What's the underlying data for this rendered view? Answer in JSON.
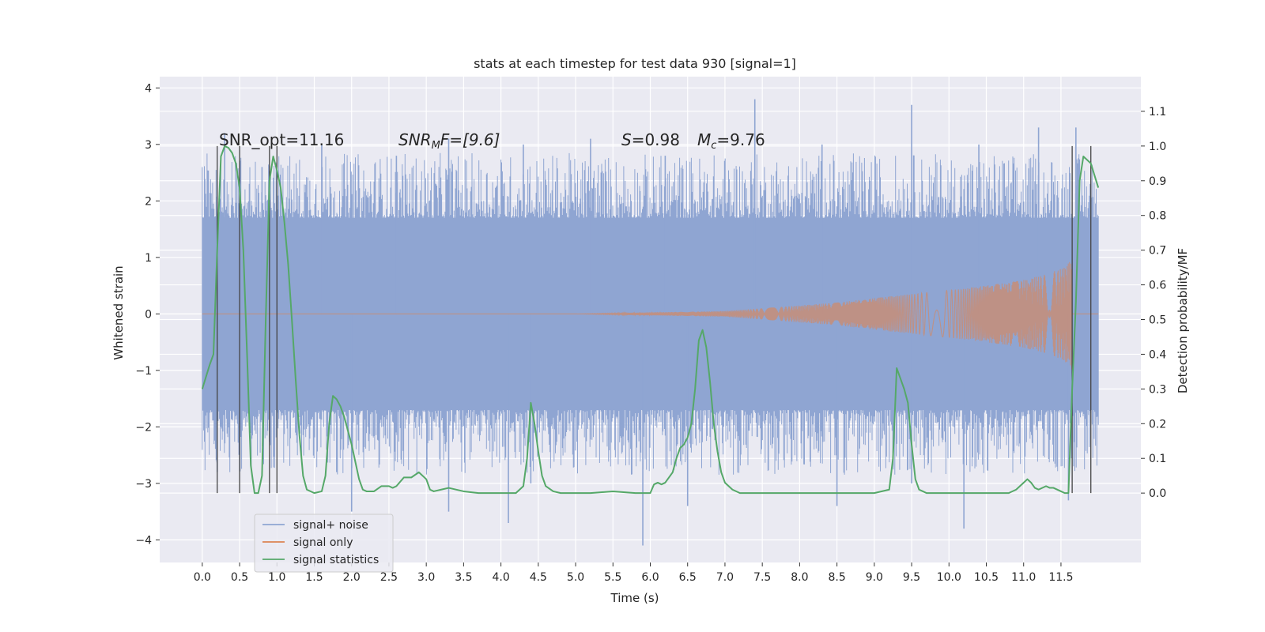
{
  "chart_data": {
    "type": "line",
    "title": "stats at each timestep for test data 930 [signal=1]",
    "xlabel": "Time (s)",
    "ylabel_left": "Whitened strain",
    "ylabel_right": "Detection probability/MF",
    "xlim": [
      -0.57,
      12.57
    ],
    "ylim_left": [
      -4.4,
      4.2
    ],
    "ylim_right": [
      -0.2,
      1.2
    ],
    "x_ticks": [
      0.0,
      0.5,
      1.0,
      1.5,
      2.0,
      2.5,
      3.0,
      3.5,
      4.0,
      4.5,
      5.0,
      5.5,
      6.0,
      6.5,
      7.0,
      7.5,
      8.0,
      8.5,
      9.0,
      9.5,
      10.0,
      10.5,
      11.0,
      11.5
    ],
    "x_tick_labels": [
      "0.0",
      "0.5",
      "1.0",
      "1.5",
      "2.0",
      "2.5",
      "3.0",
      "3.5",
      "4.0",
      "4.5",
      "5.0",
      "5.5",
      "6.0",
      "6.5",
      "7.0",
      "7.5",
      "8.0",
      "8.5",
      "9.0",
      "9.5",
      "10.0",
      "10.5",
      "11.0",
      "11.5"
    ],
    "y_left_ticks": [
      -4,
      -3,
      -2,
      -1,
      0,
      1,
      2,
      3,
      4
    ],
    "y_left_tick_labels": [
      "−4",
      "−3",
      "−2",
      "−1",
      "0",
      "1",
      "2",
      "3",
      "4"
    ],
    "y_right_ticks": [
      0.0,
      0.1,
      0.2,
      0.3,
      0.4,
      0.5,
      0.6,
      0.7,
      0.8,
      0.9,
      1.0,
      1.1
    ],
    "y_right_tick_labels": [
      "0.0",
      "0.1",
      "0.2",
      "0.3",
      "0.4",
      "0.5",
      "0.6",
      "0.7",
      "0.8",
      "0.9",
      "1.0",
      "1.1"
    ],
    "grid": true,
    "legend_position": "lower-left",
    "annotations": {
      "snr_opt": "SNR_opt=11.16",
      "snr_mf_base": "SNR",
      "snr_mf_sub": "M",
      "snr_mf_rest": "F=[9.6]",
      "s_sym": "S",
      "s_val": "=0.98",
      "mc_sym": "M",
      "mc_sub": "c",
      "mc_val": "=9.76"
    },
    "vertical_markers": [
      0.2,
      0.5,
      0.9,
      1.0,
      11.65,
      11.9
    ],
    "series": [
      {
        "name": "signal+ noise",
        "color": "#8fa5d2",
        "axis": "left",
        "style": "dense-noise",
        "x_range": [
          0.0,
          12.0
        ],
        "core_band": [
          -1.7,
          1.7
        ],
        "upper_spikes": [
          [
            0.3,
            3.2
          ],
          [
            0.8,
            2.6
          ],
          [
            1.6,
            3.0
          ],
          [
            2.6,
            2.8
          ],
          [
            3.3,
            3.1
          ],
          [
            4.3,
            3.0
          ],
          [
            5.2,
            3.1
          ],
          [
            6.2,
            2.8
          ],
          [
            7.4,
            3.8
          ],
          [
            8.3,
            3.0
          ],
          [
            9.5,
            3.7
          ],
          [
            10.4,
            3.0
          ],
          [
            11.2,
            3.3
          ],
          [
            11.7,
            3.3
          ]
        ],
        "lower_spikes": [
          [
            0.2,
            -2.8
          ],
          [
            1.8,
            -2.8
          ],
          [
            2.0,
            -3.5
          ],
          [
            3.3,
            -3.5
          ],
          [
            4.1,
            -3.7
          ],
          [
            4.4,
            -3.0
          ],
          [
            5.9,
            -4.1
          ],
          [
            6.5,
            -3.4
          ],
          [
            8.5,
            -3.4
          ],
          [
            9.5,
            -3.0
          ],
          [
            10.2,
            -3.8
          ],
          [
            11.6,
            -3.3
          ]
        ]
      },
      {
        "name": "signal only",
        "color": "#dd8452",
        "axis": "left",
        "style": "chirp",
        "x_range": [
          0.0,
          11.65
        ],
        "envelope_t": [
          7.0,
          7.5,
          8.0,
          8.5,
          9.0,
          9.5,
          10.0,
          10.5,
          11.0,
          11.3,
          11.5,
          11.6,
          11.65
        ],
        "envelope_a": [
          0.05,
          0.1,
          0.15,
          0.2,
          0.28,
          0.35,
          0.42,
          0.5,
          0.6,
          0.7,
          0.8,
          0.9,
          1.0
        ]
      },
      {
        "name": "signal statistics",
        "color": "#55a868",
        "axis": "right",
        "style": "line",
        "x": [
          0.0,
          0.1,
          0.15,
          0.2,
          0.25,
          0.3,
          0.35,
          0.4,
          0.45,
          0.5,
          0.55,
          0.6,
          0.65,
          0.7,
          0.75,
          0.8,
          0.85,
          0.9,
          0.95,
          1.0,
          1.05,
          1.1,
          1.15,
          1.2,
          1.25,
          1.3,
          1.35,
          1.4,
          1.5,
          1.6,
          1.65,
          1.7,
          1.75,
          1.8,
          1.85,
          1.9,
          1.95,
          2.0,
          2.05,
          2.1,
          2.15,
          2.2,
          2.3,
          2.4,
          2.5,
          2.55,
          2.6,
          2.7,
          2.8,
          2.9,
          3.0,
          3.05,
          3.1,
          3.2,
          3.3,
          3.5,
          3.7,
          4.0,
          4.2,
          4.3,
          4.35,
          4.4,
          4.45,
          4.5,
          4.55,
          4.6,
          4.7,
          4.8,
          5.0,
          5.2,
          5.5,
          5.8,
          6.0,
          6.05,
          6.1,
          6.15,
          6.2,
          6.3,
          6.35,
          6.4,
          6.45,
          6.5,
          6.55,
          6.6,
          6.65,
          6.7,
          6.75,
          6.8,
          6.85,
          6.9,
          6.95,
          7.0,
          7.05,
          7.1,
          7.2,
          7.3,
          7.5,
          7.8,
          8.2,
          8.6,
          9.0,
          9.2,
          9.25,
          9.3,
          9.35,
          9.4,
          9.45,
          9.5,
          9.55,
          9.6,
          9.65,
          9.7,
          9.8,
          10.0,
          10.2,
          10.5,
          10.8,
          10.9,
          11.0,
          11.05,
          11.1,
          11.15,
          11.2,
          11.3,
          11.35,
          11.4,
          11.5,
          11.55,
          11.6,
          11.65,
          11.7,
          11.75,
          11.8,
          11.9,
          12.0
        ],
        "y": [
          0.3,
          0.37,
          0.4,
          0.7,
          0.97,
          1.0,
          0.995,
          0.98,
          0.95,
          0.88,
          0.7,
          0.4,
          0.08,
          0.0,
          0.0,
          0.05,
          0.5,
          0.9,
          0.97,
          0.93,
          0.88,
          0.78,
          0.66,
          0.5,
          0.33,
          0.17,
          0.05,
          0.01,
          0.0,
          0.005,
          0.05,
          0.2,
          0.28,
          0.27,
          0.25,
          0.22,
          0.18,
          0.14,
          0.09,
          0.04,
          0.01,
          0.005,
          0.005,
          0.02,
          0.02,
          0.015,
          0.02,
          0.045,
          0.045,
          0.06,
          0.04,
          0.01,
          0.005,
          0.01,
          0.015,
          0.005,
          0.0,
          0.0,
          0.0,
          0.02,
          0.1,
          0.26,
          0.2,
          0.12,
          0.05,
          0.02,
          0.005,
          0.0,
          0.0,
          0.0,
          0.005,
          0.0,
          0.0,
          0.025,
          0.03,
          0.025,
          0.03,
          0.06,
          0.1,
          0.13,
          0.14,
          0.16,
          0.2,
          0.3,
          0.44,
          0.47,
          0.42,
          0.32,
          0.2,
          0.12,
          0.06,
          0.03,
          0.02,
          0.01,
          0.0,
          0.0,
          0.0,
          0.0,
          0.0,
          0.0,
          0.0,
          0.01,
          0.1,
          0.36,
          0.33,
          0.3,
          0.26,
          0.14,
          0.04,
          0.01,
          0.005,
          0.0,
          0.0,
          0.0,
          0.0,
          0.0,
          0.0,
          0.01,
          0.03,
          0.04,
          0.03,
          0.015,
          0.01,
          0.02,
          0.015,
          0.015,
          0.005,
          0.0,
          0.0,
          0.3,
          0.55,
          0.9,
          0.97,
          0.95,
          0.88
        ]
      }
    ]
  }
}
